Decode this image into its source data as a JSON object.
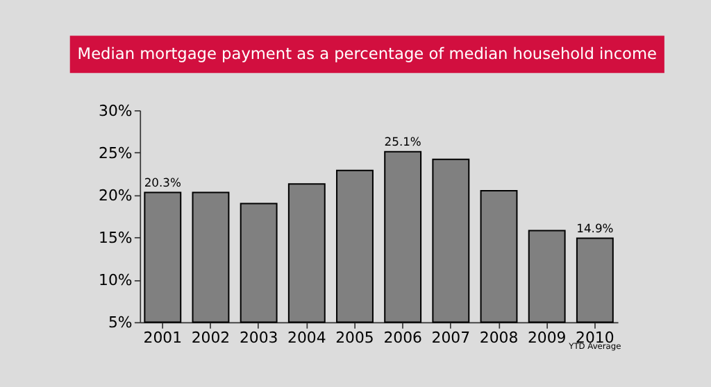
{
  "chart_data": {
    "type": "bar",
    "title": "Median mortgage payment as a percentage of median household income",
    "categories": [
      "2001",
      "2002",
      "2003",
      "2004",
      "2005",
      "2006",
      "2007",
      "2008",
      "2009",
      "2010"
    ],
    "values": [
      20.3,
      20.3,
      19.0,
      21.3,
      22.9,
      25.1,
      24.2,
      20.5,
      15.8,
      14.9
    ],
    "value_labels": [
      "20.3%",
      null,
      null,
      null,
      null,
      "25.1%",
      null,
      null,
      null,
      "14.9%"
    ],
    "color": "#808080",
    "ylim": [
      5,
      30
    ],
    "yticks": [
      {
        "value": 5,
        "label": "5%"
      },
      {
        "value": 10,
        "label": "10%"
      },
      {
        "value": 15,
        "label": "15%"
      },
      {
        "value": 20,
        "label": "20%"
      },
      {
        "value": 25,
        "label": "25%"
      },
      {
        "value": 30,
        "label": "30%"
      }
    ],
    "annotations": [
      "YTD Average"
    ]
  }
}
